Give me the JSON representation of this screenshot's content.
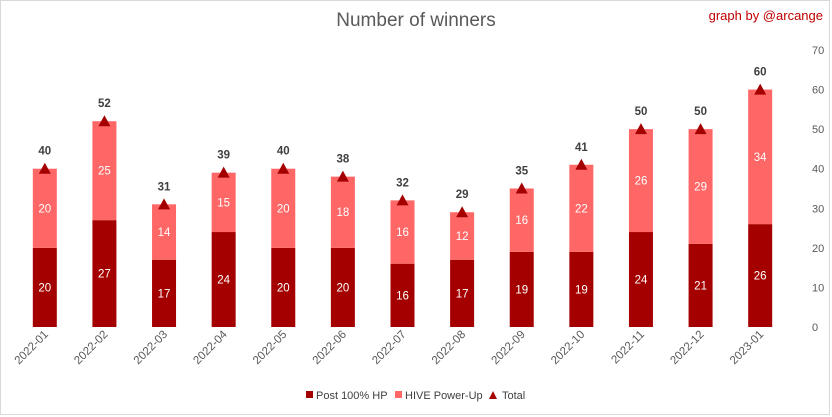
{
  "chart_data": {
    "type": "bar",
    "title": "Number of winners",
    "credit": "graph by @arcange",
    "categories": [
      "2022-01",
      "2022-02",
      "2022-03",
      "2022-04",
      "2022-05",
      "2022-06",
      "2022-07",
      "2022-08",
      "2022-09",
      "2022-10",
      "2022-11",
      "2022-12",
      "2023-01"
    ],
    "series": [
      {
        "name": "Post 100% HP",
        "kind": "stacked-bar",
        "color": "#a50000",
        "values": [
          20,
          27,
          17,
          24,
          20,
          20,
          16,
          17,
          19,
          19,
          24,
          21,
          26
        ]
      },
      {
        "name": "HIVE Power-Up",
        "kind": "stacked-bar",
        "color": "#ff6666",
        "values": [
          20,
          25,
          14,
          15,
          20,
          18,
          16,
          12,
          16,
          22,
          26,
          29,
          34
        ]
      },
      {
        "name": "Total",
        "kind": "marker",
        "marker": "triangle",
        "color": "#a50000",
        "values": [
          40,
          52,
          31,
          39,
          40,
          38,
          32,
          29,
          35,
          41,
          50,
          50,
          60
        ]
      }
    ],
    "y_axis": {
      "side": "right",
      "range": [
        0,
        70
      ],
      "ticks": [
        0,
        10,
        20,
        30,
        40,
        50,
        60,
        70
      ]
    },
    "grid": false,
    "legend_position": "bottom"
  }
}
